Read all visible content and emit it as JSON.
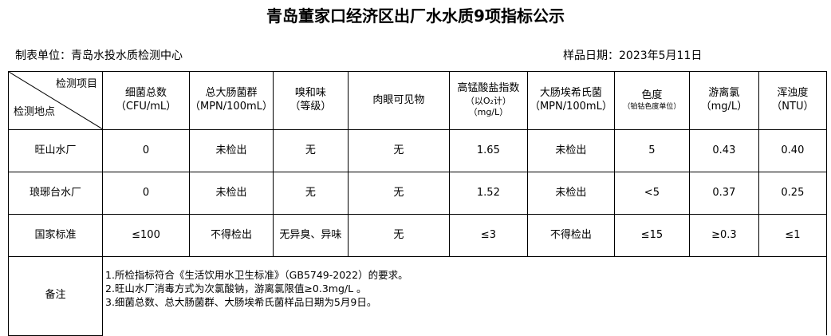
{
  "title": "青岛董家口经济区出厂水水质9项指标公示",
  "unit": "制表单位：青岛水投水质检测中心",
  "date": "样品日期：2023年5月11日",
  "corner": {
    "item": "检测项目",
    "site": "检测地点"
  },
  "columns": [
    {
      "name": "细菌总数",
      "unit": "（CFU/mL）"
    },
    {
      "name": "总大肠菌群",
      "unit": "（MPN/100mL）"
    },
    {
      "name": "嗅和味",
      "unit": "（等级）"
    },
    {
      "name": "肉眼可见物",
      "unit": ""
    },
    {
      "name": "高锰酸盐指数",
      "unit": "（以O₂计）",
      "unit2": "（mg/L）"
    },
    {
      "name": "大肠埃希氏菌",
      "unit": "（MPN/100mL）"
    },
    {
      "name": "色度",
      "unit": "（铂钴色度单位）"
    },
    {
      "name": "游离氯",
      "unit": "（mg/L）"
    },
    {
      "name": "浑浊度",
      "unit": "（NTU）"
    }
  ],
  "rows": [
    {
      "site": "旺山水厂",
      "values": [
        "0",
        "未检出",
        "无",
        "无",
        "1.65",
        "未检出",
        "5",
        "0.43",
        "0.40"
      ]
    },
    {
      "site": "琅琊台水厂",
      "values": [
        "0",
        "未检出",
        "无",
        "无",
        "1.52",
        "未检出",
        "<5",
        "0.37",
        "0.25"
      ]
    },
    {
      "site": "国家标准",
      "values": [
        "≤100",
        "不得检出",
        "无异臭、异味",
        "无",
        "≤3",
        "不得检出",
        "≤15",
        "≥0.3",
        "≤1"
      ]
    }
  ],
  "notes": {
    "label": "备注",
    "lines": [
      "1.所检指标符合《生活饮用水卫生标准》（GB5749-2022）的要求。",
      "2.旺山水厂消毒方式为次氯酸钠，游离氯限值≥0.3mg/L 。",
      "3.细菌总数、总大肠菌群、大肠埃希氏菌样品日期为5月9日。"
    ]
  }
}
